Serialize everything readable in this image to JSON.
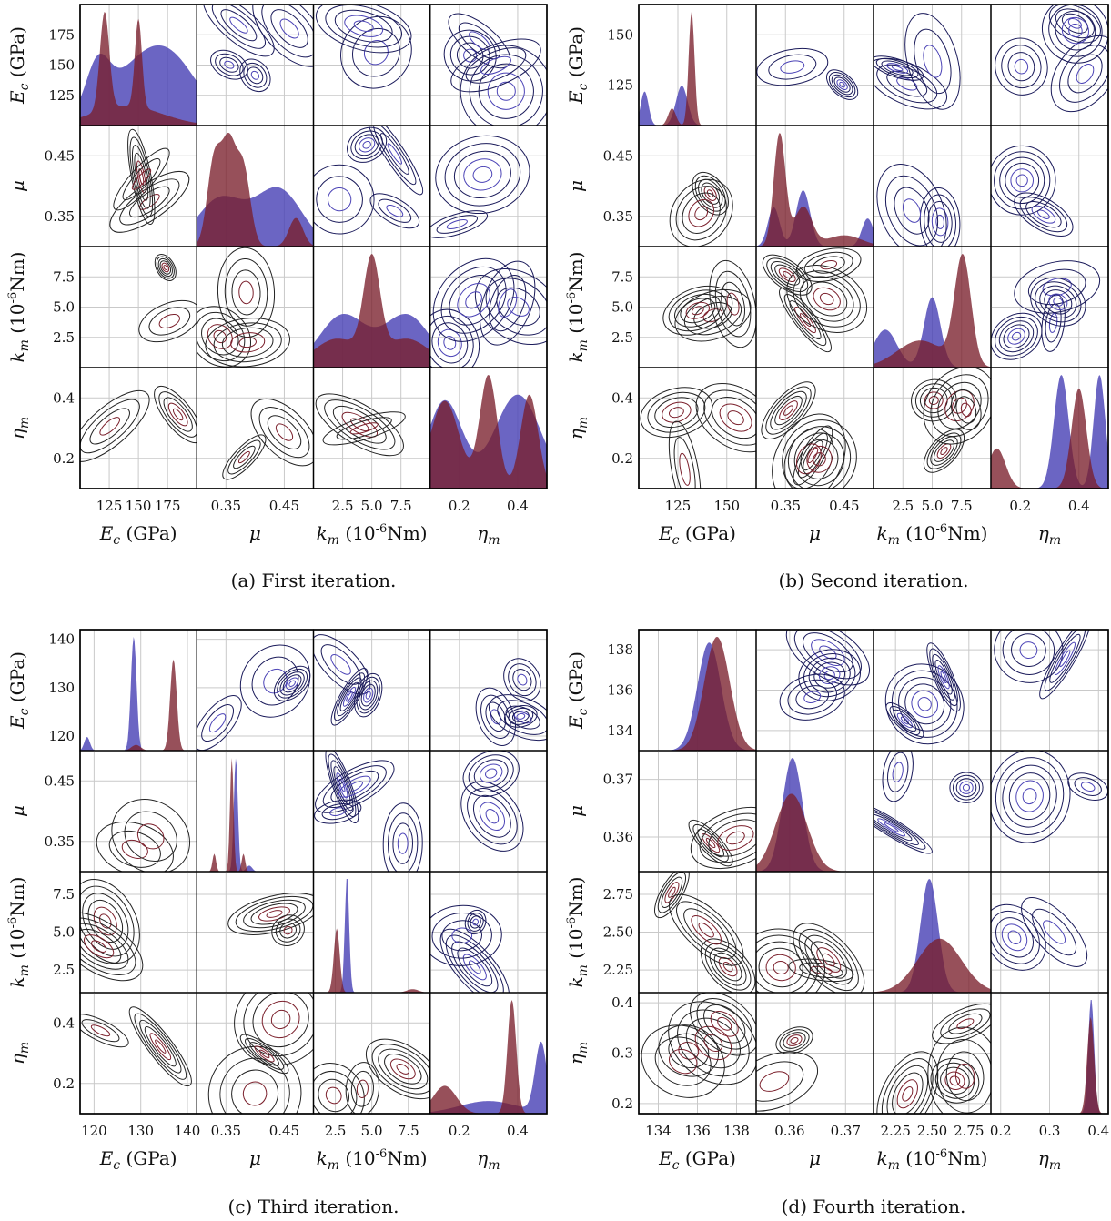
{
  "colors": {
    "prior": "#4b43b6",
    "posterior": "#7a1f2b",
    "overlap": "#5a1f3a",
    "contour_dark": "#222222"
  },
  "chart_data": [
    {
      "type": "pairplot",
      "caption": "(a) First iteration.",
      "params": [
        {
          "row_label": "E_c (GPa)",
          "col_label": "E_c (GPa)",
          "ticks": [
            "125",
            "150",
            "175"
          ],
          "range": [
            100,
            200
          ]
        },
        {
          "row_label": "μ",
          "col_label": "μ",
          "ticks": [
            "0.35",
            "0.45"
          ],
          "range": [
            0.3,
            0.5
          ]
        },
        {
          "row_label": "k_m (10^-6 Nm)",
          "col_label": "k_m (10^-6 Nm)",
          "ticks": [
            "2.5",
            "5.0",
            "7.5"
          ],
          "range": [
            0,
            10
          ]
        },
        {
          "row_label": "η_m",
          "col_label": "η_m",
          "ticks": [
            "0.2",
            "0.4"
          ],
          "range": [
            0.1,
            0.5
          ]
        }
      ],
      "row_ticks": [
        [
          "125",
          "150",
          "175"
        ],
        [
          "0.35",
          "0.45"
        ],
        [
          "2.5",
          "5.0",
          "7.5"
        ],
        [
          "0.2",
          "0.4"
        ]
      ],
      "diagonals": [
        {
          "prior": {
            "peaks": [
              [
                115,
                0.45,
                10
              ],
              [
                150,
                0.5,
                30
              ],
              [
                180,
                0.45,
                25
              ]
            ]
          },
          "posterior": {
            "peaks": [
              [
                121,
                1.0,
                4
              ],
              [
                150,
                0.9,
                3
              ],
              [
                140,
                0.2,
                30
              ]
            ]
          }
        },
        {
          "prior": {
            "peaks": [
              [
                0.34,
                0.5,
                0.04
              ],
              [
                0.44,
                0.6,
                0.04
              ]
            ]
          },
          "posterior": {
            "peaks": [
              [
                0.33,
                0.9,
                0.012
              ],
              [
                0.355,
                1.0,
                0.012
              ],
              [
                0.38,
                0.8,
                0.012
              ],
              [
                0.47,
                0.3,
                0.012
              ]
            ]
          }
        },
        {
          "prior": {
            "peaks": [
              [
                2.5,
                0.55,
                2
              ],
              [
                8,
                0.55,
                2
              ]
            ]
          },
          "posterior": {
            "peaks": [
              [
                5.0,
                1.0,
                0.7
              ],
              [
                2.0,
                0.3,
                2
              ],
              [
                8.0,
                0.3,
                2
              ]
            ]
          }
        },
        {
          "prior": {
            "peaks": [
              [
                0.15,
                0.7,
                0.06
              ],
              [
                0.4,
                0.75,
                0.08
              ]
            ]
          },
          "posterior": {
            "peaks": [
              [
                0.3,
                0.9,
                0.03
              ],
              [
                0.44,
                0.75,
                0.03
              ],
              [
                0.15,
                0.7,
                0.05
              ]
            ]
          }
        }
      ]
    },
    {
      "type": "pairplot",
      "caption": "(b) Second iteration.",
      "params": [
        {
          "row_label": "E_c (GPa)",
          "col_label": "E_c (GPa)",
          "ticks": [
            "125",
            "150"
          ],
          "range": [
            105,
            165
          ]
        },
        {
          "row_label": "μ",
          "col_label": "μ",
          "ticks": [
            "0.35",
            "0.45"
          ],
          "range": [
            0.3,
            0.5
          ]
        },
        {
          "row_label": "k_m (10^-6 Nm)",
          "col_label": "k_m (10^-6 Nm)",
          "ticks": [
            "2.5",
            "5.0",
            "7.5"
          ],
          "range": [
            0,
            10
          ]
        },
        {
          "row_label": "η_m",
          "col_label": "η_m",
          "ticks": [
            "0.2",
            "0.4"
          ],
          "range": [
            0.1,
            0.5
          ]
        }
      ],
      "row_ticks": [
        [
          "125",
          "150"
        ],
        [
          "0.35",
          "0.45"
        ],
        [
          "2.5",
          "5.0",
          "7.5"
        ],
        [
          "0.2",
          "0.4"
        ]
      ],
      "diagonals": [
        {
          "prior": {
            "peaks": [
              [
                108,
                0.3,
                2
              ],
              [
                127,
                0.35,
                3
              ]
            ]
          },
          "posterior": {
            "peaks": [
              [
                132,
                1.0,
                1.5
              ],
              [
                122,
                0.15,
                2
              ]
            ]
          }
        },
        {
          "prior": {
            "peaks": [
              [
                0.33,
                0.35,
                0.01
              ],
              [
                0.38,
                0.5,
                0.012
              ],
              [
                0.49,
                0.25,
                0.01
              ]
            ]
          },
          "posterior": {
            "peaks": [
              [
                0.34,
                1.0,
                0.01
              ],
              [
                0.38,
                0.35,
                0.015
              ],
              [
                0.45,
                0.1,
                0.03
              ]
            ]
          }
        },
        {
          "prior": {
            "peaks": [
              [
                5.0,
                0.65,
                0.7
              ],
              [
                1.0,
                0.35,
                1
              ]
            ]
          },
          "posterior": {
            "peaks": [
              [
                7.6,
                1.0,
                0.7
              ],
              [
                4.0,
                0.25,
                2
              ]
            ]
          }
        },
        {
          "prior": {
            "peaks": [
              [
                0.34,
                0.85,
                0.025
              ],
              [
                0.47,
                0.85,
                0.02
              ]
            ]
          },
          "posterior": {
            "peaks": [
              [
                0.4,
                0.75,
                0.025
              ],
              [
                0.12,
                0.3,
                0.03
              ]
            ]
          }
        }
      ]
    },
    {
      "type": "pairplot",
      "caption": "(c) Third iteration.",
      "params": [
        {
          "row_label": "E_c (GPa)",
          "col_label": "E_c (GPa)",
          "ticks": [
            "120",
            "130",
            "140"
          ],
          "range": [
            117,
            142
          ]
        },
        {
          "row_label": "μ",
          "col_label": "μ",
          "ticks": [
            "0.35",
            "0.45"
          ],
          "range": [
            0.3,
            0.5
          ]
        },
        {
          "row_label": "k_m (10^-6 Nm)",
          "col_label": "k_m (10^-6 Nm)",
          "ticks": [
            "2.5",
            "5.0",
            "7.5"
          ],
          "range": [
            1,
            9
          ]
        },
        {
          "row_label": "η_m",
          "col_label": "η_m",
          "ticks": [
            "0.2",
            "0.4"
          ],
          "range": [
            0.1,
            0.5
          ]
        }
      ],
      "row_ticks": [
        [
          "120",
          "130",
          "140"
        ],
        [
          "0.35",
          "0.45"
        ],
        [
          "2.5",
          "5.0",
          "7.5"
        ],
        [
          "0.2",
          "0.4"
        ]
      ],
      "diagonals": [
        {
          "prior": {
            "peaks": [
              [
                128.5,
                1.0,
                0.6
              ],
              [
                118.5,
                0.12,
                0.6
              ]
            ]
          },
          "posterior": {
            "peaks": [
              [
                137,
                0.8,
                0.7
              ],
              [
                129,
                0.05,
                1
              ]
            ]
          }
        },
        {
          "prior": {
            "peaks": [
              [
                0.367,
                0.95,
                0.0035
              ],
              [
                0.39,
                0.05,
                0.005
              ]
            ]
          },
          "posterior": {
            "peaks": [
              [
                0.36,
                0.95,
                0.003
              ],
              [
                0.33,
                0.15,
                0.003
              ],
              [
                0.38,
                0.15,
                0.003
              ]
            ]
          }
        },
        {
          "prior": {
            "peaks": [
              [
                3.3,
                1.0,
                0.15
              ]
            ]
          },
          "posterior": {
            "peaks": [
              [
                2.6,
                0.55,
                0.2
              ],
              [
                7.8,
                0.03,
                0.4
              ]
            ]
          }
        },
        {
          "prior": {
            "peaks": [
              [
                0.48,
                0.55,
                0.02
              ],
              [
                0.3,
                0.1,
                0.1
              ]
            ]
          },
          "posterior": {
            "peaks": [
              [
                0.38,
                0.9,
                0.015
              ],
              [
                0.15,
                0.22,
                0.04
              ]
            ]
          }
        }
      ]
    },
    {
      "type": "pairplot",
      "caption": "(d) Fourth iteration.",
      "params": [
        {
          "row_label": "E_c (GPa)",
          "col_label": "E_c (GPa)",
          "ticks": [
            "134",
            "136",
            "138"
          ],
          "range": [
            133,
            139
          ]
        },
        {
          "row_label": "μ",
          "col_label": "μ",
          "ticks": [
            "0.36",
            "0.37"
          ],
          "range": [
            0.354,
            0.375
          ]
        },
        {
          "row_label": "k_m (10^-6 Nm)",
          "col_label": "k_m (10^-6 Nm)",
          "ticks": [
            "2.25",
            "2.50",
            "2.75"
          ],
          "range": [
            2.1,
            2.9
          ]
        },
        {
          "row_label": "η_m",
          "col_label": "η_m",
          "ticks": [
            "0.2",
            "0.3",
            "0.4"
          ],
          "range": [
            0.18,
            0.42
          ]
        }
      ],
      "row_ticks": [
        [
          "134",
          "136",
          "138"
        ],
        [
          "0.36",
          "0.37"
        ],
        [
          "2.25",
          "2.50",
          "2.75"
        ],
        [
          "0.2",
          "0.3",
          "0.4"
        ]
      ],
      "diagonals": [
        {
          "prior": {
            "peaks": [
              [
                136.6,
                0.95,
                0.6
              ]
            ]
          },
          "posterior": {
            "peaks": [
              [
                137.0,
                1.0,
                0.65
              ]
            ]
          }
        },
        {
          "prior": {
            "peaks": [
              [
                0.3605,
                0.95,
                0.0018
              ]
            ]
          },
          "posterior": {
            "peaks": [
              [
                0.3603,
                0.65,
                0.0028
              ]
            ]
          }
        },
        {
          "prior": {
            "peaks": [
              [
                2.48,
                0.95,
                0.06
              ]
            ]
          },
          "posterior": {
            "peaks": [
              [
                2.55,
                0.45,
                0.15
              ]
            ]
          }
        },
        {
          "prior": {
            "peaks": [
              [
                0.385,
                0.98,
                0.006
              ]
            ]
          },
          "posterior": {
            "peaks": [
              [
                0.384,
                0.82,
                0.007
              ]
            ]
          }
        }
      ]
    }
  ]
}
